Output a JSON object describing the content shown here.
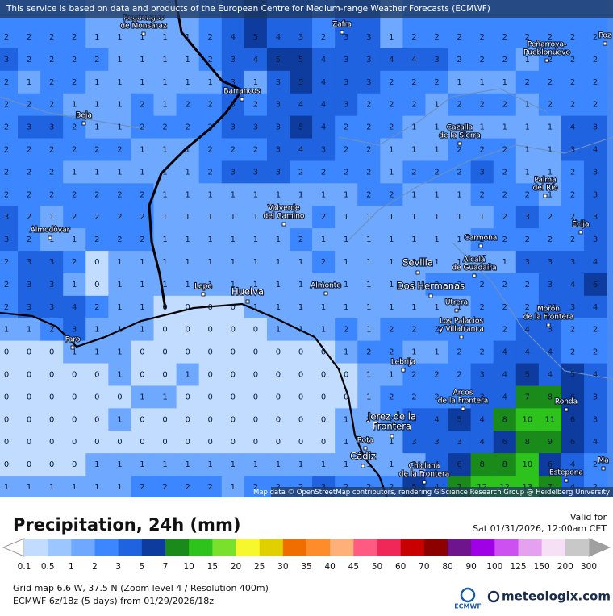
{
  "map": {
    "header": "This service is based on data and products of the European Centre for Medium-range Weather Forecasts (ECMWF)",
    "attribution": "Map data © OpenStreetMap contributors, rendering GIScience Research Group @ Heidelberg University",
    "grid": [
      [
        2,
        2,
        2,
        2,
        1,
        1,
        1,
        1,
        1,
        2,
        4,
        5,
        4,
        3,
        2,
        3,
        3,
        1,
        2,
        2,
        2,
        2,
        2,
        2,
        2,
        2,
        2
      ],
      [
        3,
        2,
        2,
        2,
        2,
        1,
        1,
        1,
        1,
        2,
        3,
        4,
        5,
        5,
        4,
        3,
        3,
        4,
        4,
        3,
        2,
        2,
        2,
        1,
        2,
        2,
        2
      ],
      [
        2,
        1,
        2,
        2,
        1,
        1,
        1,
        1,
        1,
        1,
        3,
        1,
        3,
        5,
        4,
        3,
        3,
        2,
        2,
        2,
        1,
        1,
        1,
        2,
        2,
        2,
        2
      ],
      [
        2,
        2,
        2,
        1,
        1,
        1,
        2,
        1,
        2,
        2,
        3,
        2,
        3,
        4,
        4,
        3,
        2,
        2,
        2,
        1,
        2,
        2,
        2,
        1,
        2,
        2,
        2
      ],
      [
        2,
        3,
        3,
        2,
        1,
        1,
        2,
        2,
        2,
        2,
        3,
        3,
        3,
        5,
        4,
        2,
        2,
        2,
        1,
        1,
        1,
        1,
        1,
        1,
        1,
        4,
        3
      ],
      [
        2,
        2,
        2,
        2,
        2,
        2,
        1,
        1,
        1,
        2,
        2,
        2,
        3,
        4,
        3,
        2,
        2,
        1,
        1,
        1,
        2,
        2,
        2,
        1,
        1,
        3,
        4
      ],
      [
        2,
        2,
        2,
        1,
        1,
        1,
        1,
        1,
        1,
        2,
        3,
        3,
        3,
        2,
        2,
        2,
        2,
        1,
        2,
        2,
        2,
        3,
        2,
        1,
        1,
        2,
        3
      ],
      [
        2,
        2,
        2,
        2,
        2,
        2,
        2,
        1,
        1,
        1,
        1,
        1,
        1,
        1,
        1,
        1,
        2,
        2,
        1,
        1,
        1,
        2,
        2,
        2,
        1,
        2,
        3
      ],
      [
        3,
        2,
        1,
        2,
        2,
        2,
        2,
        1,
        1,
        1,
        1,
        1,
        1,
        1,
        2,
        1,
        1,
        1,
        1,
        1,
        1,
        1,
        2,
        3,
        2,
        2,
        3
      ],
      [
        3,
        2,
        1,
        1,
        2,
        2,
        2,
        1,
        1,
        1,
        1,
        1,
        1,
        2,
        1,
        1,
        1,
        1,
        1,
        1,
        1,
        2,
        2,
        2,
        2,
        2,
        3
      ],
      [
        2,
        3,
        3,
        2,
        0,
        1,
        1,
        1,
        1,
        1,
        1,
        1,
        1,
        1,
        2,
        1,
        1,
        1,
        1,
        1,
        1,
        1,
        1,
        3,
        3,
        3,
        4
      ],
      [
        2,
        3,
        3,
        1,
        0,
        1,
        1,
        1,
        1,
        1,
        1,
        1,
        1,
        1,
        1,
        1,
        1,
        1,
        1,
        2,
        2,
        2,
        2,
        2,
        3,
        4,
        6
      ],
      [
        2,
        3,
        3,
        4,
        2,
        1,
        1,
        0,
        0,
        0,
        0,
        1,
        1,
        1,
        1,
        1,
        1,
        1,
        1,
        1,
        1,
        2,
        2,
        2,
        3,
        3,
        4
      ],
      [
        1,
        1,
        2,
        3,
        1,
        1,
        1,
        0,
        0,
        0,
        0,
        0,
        1,
        1,
        1,
        2,
        1,
        2,
        2,
        2,
        2,
        2,
        2,
        4,
        3,
        2,
        2
      ],
      [
        0,
        0,
        0,
        1,
        1,
        1,
        0,
        0,
        0,
        0,
        0,
        0,
        0,
        0,
        0,
        1,
        2,
        2,
        1,
        1,
        2,
        2,
        4,
        4,
        4,
        2,
        2
      ],
      [
        0,
        0,
        0,
        0,
        0,
        1,
        0,
        0,
        1,
        0,
        0,
        0,
        0,
        0,
        0,
        0,
        1,
        1,
        2,
        2,
        2,
        3,
        4,
        5,
        4,
        5,
        4
      ],
      [
        0,
        0,
        0,
        0,
        0,
        0,
        1,
        1,
        0,
        0,
        0,
        0,
        0,
        0,
        0,
        0,
        1,
        2,
        2,
        2,
        2,
        3,
        4,
        7,
        8,
        6,
        3
      ],
      [
        0,
        0,
        0,
        0,
        0,
        1,
        0,
        0,
        0,
        0,
        0,
        0,
        0,
        0,
        0,
        1,
        1,
        2,
        3,
        4,
        5,
        4,
        8,
        10,
        11,
        6,
        3
      ],
      [
        0,
        0,
        0,
        0,
        0,
        0,
        0,
        0,
        0,
        0,
        0,
        0,
        0,
        0,
        0,
        1,
        1,
        1,
        3,
        3,
        3,
        4,
        6,
        8,
        9,
        6,
        4
      ],
      [
        0,
        0,
        0,
        0,
        1,
        1,
        1,
        1,
        1,
        1,
        1,
        1,
        1,
        1,
        1,
        1,
        1,
        1,
        1,
        4,
        6,
        8,
        8,
        10,
        6,
        4,
        2
      ],
      [
        1,
        1,
        1,
        1,
        1,
        1,
        2,
        2,
        2,
        2,
        1,
        2,
        2,
        2,
        3,
        2,
        2,
        2,
        5,
        4,
        7,
        12,
        12,
        13,
        7,
        4,
        2
      ]
    ],
    "places": [
      {
        "lines": [
          "Reguengos",
          "de Monsaraz"
        ]
      },
      {
        "lines": [
          "Zafra"
        ]
      },
      {
        "lines": [
          "Peñarroya-",
          "Pueblonuevo"
        ]
      },
      {
        "lines": [
          "Poz"
        ]
      },
      {
        "lines": [
          "Barrancos"
        ]
      },
      {
        "lines": [
          "Beja"
        ]
      },
      {
        "lines": [
          "Cazalla",
          "de la Sierra"
        ]
      },
      {
        "lines": [
          "Palma",
          "del Río"
        ]
      },
      {
        "lines": [
          "Valverde",
          "del Camino"
        ]
      },
      {
        "lines": [
          "Écija"
        ]
      },
      {
        "lines": [
          "Almodôvar"
        ]
      },
      {
        "lines": [
          "Carmona"
        ]
      },
      {
        "lines": [
          "Sevilla"
        ]
      },
      {
        "lines": [
          "Alcalá",
          "de Guadaíra"
        ]
      },
      {
        "lines": [
          "Dos Hermanas"
        ]
      },
      {
        "lines": [
          "Lepe"
        ]
      },
      {
        "lines": [
          "Huelva"
        ]
      },
      {
        "lines": [
          "Almonte"
        ]
      },
      {
        "lines": [
          "Utrera"
        ]
      },
      {
        "lines": [
          "Morón",
          "de la Frontera"
        ]
      },
      {
        "lines": [
          "Los Palacios",
          "y Villafranca"
        ]
      },
      {
        "lines": [
          "Faro"
        ]
      },
      {
        "lines": [
          "Lebrija"
        ]
      },
      {
        "lines": [
          "Arcos",
          "de la Frontera"
        ]
      },
      {
        "lines": [
          "Ronda"
        ]
      },
      {
        "lines": [
          "Jerez de la",
          "Frontera"
        ]
      },
      {
        "lines": [
          "Rota"
        ]
      },
      {
        "lines": [
          "Cádiz"
        ]
      },
      {
        "lines": [
          "Chiclana",
          "de la Frontera"
        ]
      },
      {
        "lines": [
          "Estepona"
        ]
      },
      {
        "lines": [
          "Ma"
        ]
      }
    ]
  },
  "legend": {
    "title": "Precipitation, 24h (mm)",
    "valid_label": "Valid for",
    "valid_time": "Sat 01/31/2026, 12:00am CET",
    "thresholds": [
      0.1,
      0.5,
      1,
      2,
      3,
      5,
      7,
      10,
      15,
      20,
      25,
      30,
      35,
      40,
      45,
      50,
      60,
      70,
      80,
      90,
      100,
      125,
      150,
      200,
      300
    ],
    "colors": [
      "#c2dcff",
      "#9cc6ff",
      "#6ea9ff",
      "#3c87ff",
      "#1f63e0",
      "#0e3c9e",
      "#1a8a1a",
      "#2dc21c",
      "#79e02c",
      "#f7f72e",
      "#e0d000",
      "#f06e00",
      "#ff8c2a",
      "#ffb078",
      "#ff5a82",
      "#f0285a",
      "#c80000",
      "#8c0000",
      "#6e148c",
      "#a000e6",
      "#cd50f0",
      "#e6a0f0",
      "#f5e0f5",
      "#c8c8c8"
    ],
    "grid_info": "Grid map 6.6 W, 37.5 N (Zoom level 4 / Resolution 400m)",
    "model_info": "ECMWF 6z/18z (5 days) from 01/29/2026/18z"
  },
  "logos": {
    "ecmwf": "ECMWF",
    "meteologix": "meteologix.com"
  }
}
